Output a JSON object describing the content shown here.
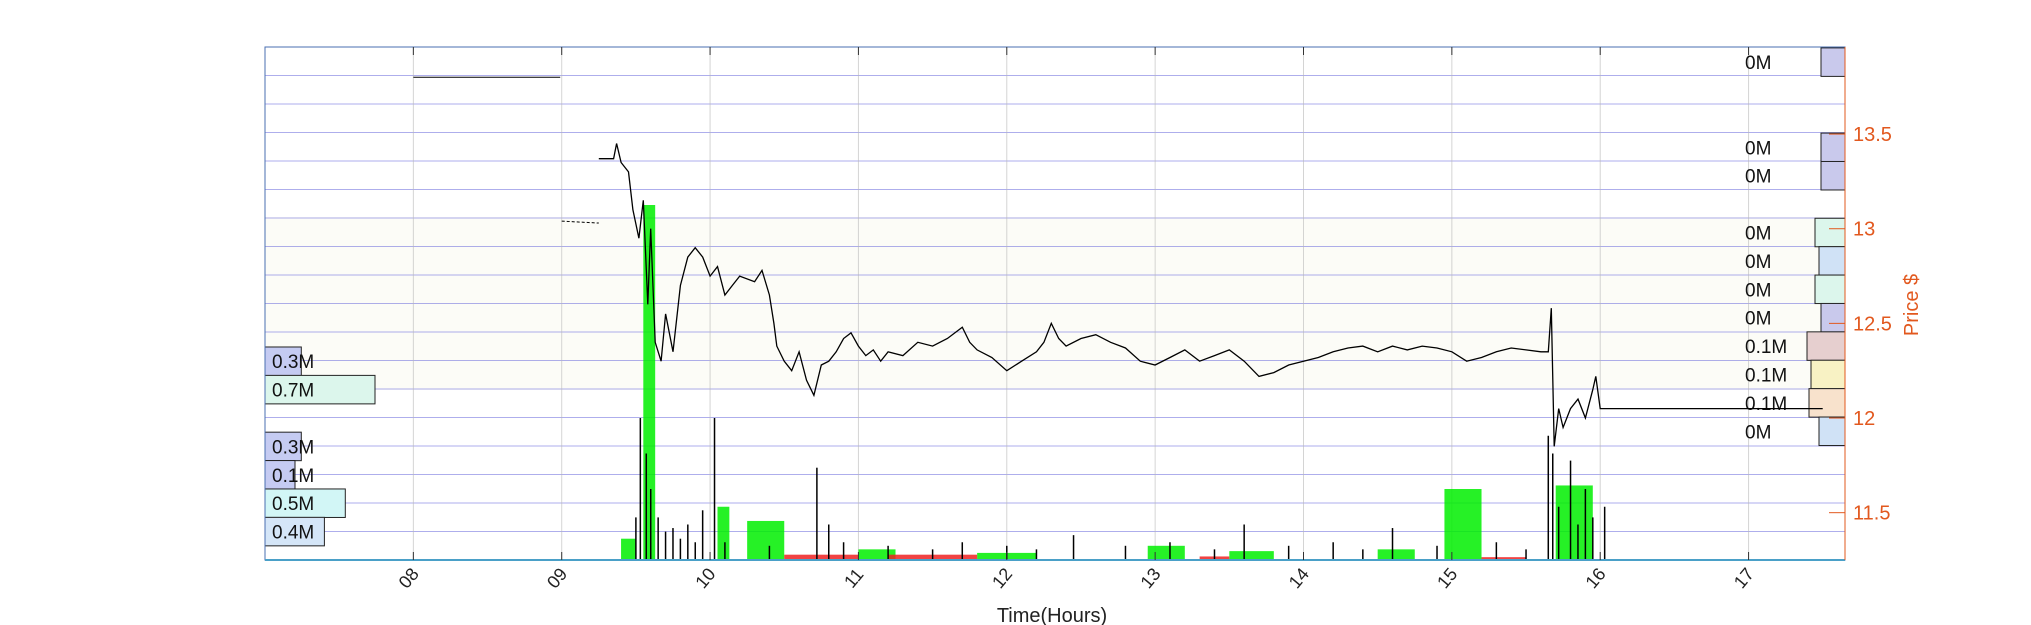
{
  "chart_data": {
    "type": "line",
    "title": "",
    "xlabel": "Time(Hours)",
    "ylabel": "Price $",
    "xlim": [
      7.0,
      17.65
    ],
    "ylim": [
      11.25,
      13.96
    ],
    "x_ticks": [
      "08",
      "09",
      "10",
      "11",
      "12",
      "13",
      "14",
      "15",
      "16",
      "17"
    ],
    "x_tick_values": [
      8,
      9,
      10,
      11,
      12,
      13,
      14,
      15,
      16,
      17
    ],
    "y_ticks": [
      "11.5",
      "12",
      "12.5",
      "13",
      "13.5"
    ],
    "y_tick_values": [
      11.5,
      12,
      12.5,
      13,
      13.5
    ],
    "grid": true,
    "colors": {
      "grid": "#6b6bdd",
      "price_line": "#000000",
      "price_axis": "#e2581e",
      "buy_volume": "#00ee00",
      "sell_volume": "#ee2222",
      "band": "#fcfcf7"
    },
    "price_series": {
      "name": "",
      "points": [
        [
          8.0,
          13.8
        ],
        [
          8.99,
          13.8
        ],
        [
          9.0,
          13.04
        ],
        [
          9.25,
          13.03
        ],
        [
          9.25,
          13.37
        ],
        [
          9.35,
          13.37
        ],
        [
          9.37,
          13.45
        ],
        [
          9.4,
          13.35
        ],
        [
          9.45,
          13.3
        ],
        [
          9.48,
          13.1
        ],
        [
          9.52,
          12.95
        ],
        [
          9.55,
          13.15
        ],
        [
          9.58,
          12.6
        ],
        [
          9.6,
          13.0
        ],
        [
          9.63,
          12.4
        ],
        [
          9.67,
          12.3
        ],
        [
          9.7,
          12.55
        ],
        [
          9.75,
          12.35
        ],
        [
          9.8,
          12.7
        ],
        [
          9.85,
          12.85
        ],
        [
          9.9,
          12.9
        ],
        [
          9.95,
          12.85
        ],
        [
          10.0,
          12.75
        ],
        [
          10.05,
          12.8
        ],
        [
          10.1,
          12.65
        ],
        [
          10.15,
          12.7
        ],
        [
          10.2,
          12.75
        ],
        [
          10.3,
          12.72
        ],
        [
          10.35,
          12.78
        ],
        [
          10.4,
          12.65
        ],
        [
          10.43,
          12.5
        ],
        [
          10.45,
          12.38
        ],
        [
          10.5,
          12.3
        ],
        [
          10.55,
          12.25
        ],
        [
          10.6,
          12.35
        ],
        [
          10.65,
          12.2
        ],
        [
          10.7,
          12.12
        ],
        [
          10.75,
          12.28
        ],
        [
          10.8,
          12.3
        ],
        [
          10.85,
          12.35
        ],
        [
          10.9,
          12.42
        ],
        [
          10.95,
          12.45
        ],
        [
          11.0,
          12.38
        ],
        [
          11.05,
          12.33
        ],
        [
          11.1,
          12.36
        ],
        [
          11.15,
          12.3
        ],
        [
          11.2,
          12.35
        ],
        [
          11.3,
          12.33
        ],
        [
          11.4,
          12.4
        ],
        [
          11.5,
          12.38
        ],
        [
          11.6,
          12.42
        ],
        [
          11.7,
          12.48
        ],
        [
          11.75,
          12.4
        ],
        [
          11.8,
          12.36
        ],
        [
          11.9,
          12.32
        ],
        [
          12.0,
          12.25
        ],
        [
          12.1,
          12.3
        ],
        [
          12.2,
          12.35
        ],
        [
          12.25,
          12.4
        ],
        [
          12.3,
          12.5
        ],
        [
          12.35,
          12.42
        ],
        [
          12.4,
          12.38
        ],
        [
          12.5,
          12.42
        ],
        [
          12.6,
          12.44
        ],
        [
          12.7,
          12.4
        ],
        [
          12.8,
          12.37
        ],
        [
          12.9,
          12.3
        ],
        [
          13.0,
          12.28
        ],
        [
          13.1,
          12.32
        ],
        [
          13.2,
          12.36
        ],
        [
          13.3,
          12.3
        ],
        [
          13.4,
          12.33
        ],
        [
          13.5,
          12.36
        ],
        [
          13.6,
          12.3
        ],
        [
          13.7,
          12.22
        ],
        [
          13.8,
          12.24
        ],
        [
          13.9,
          12.28
        ],
        [
          14.0,
          12.3
        ],
        [
          14.1,
          12.32
        ],
        [
          14.2,
          12.35
        ],
        [
          14.3,
          12.37
        ],
        [
          14.4,
          12.38
        ],
        [
          14.5,
          12.35
        ],
        [
          14.6,
          12.38
        ],
        [
          14.7,
          12.36
        ],
        [
          14.8,
          12.38
        ],
        [
          14.9,
          12.37
        ],
        [
          15.0,
          12.35
        ],
        [
          15.1,
          12.3
        ],
        [
          15.2,
          12.32
        ],
        [
          15.3,
          12.35
        ],
        [
          15.4,
          12.37
        ],
        [
          15.5,
          12.36
        ],
        [
          15.6,
          12.35
        ],
        [
          15.65,
          12.35
        ],
        [
          15.67,
          12.58
        ],
        [
          15.69,
          11.85
        ],
        [
          15.72,
          12.05
        ],
        [
          15.75,
          11.95
        ],
        [
          15.8,
          12.05
        ],
        [
          15.85,
          12.1
        ],
        [
          15.9,
          12.0
        ],
        [
          15.95,
          12.15
        ],
        [
          15.97,
          12.22
        ],
        [
          16.0,
          12.05
        ],
        [
          16.03,
          12.05
        ],
        [
          17.5,
          12.05
        ]
      ]
    },
    "volume_bars_buy": [
      {
        "x0": 9.4,
        "x1": 9.5,
        "v": 0.06
      },
      {
        "x0": 9.55,
        "x1": 9.63,
        "v": 1.0
      },
      {
        "x0": 10.05,
        "x1": 10.13,
        "v": 0.15
      },
      {
        "x0": 10.25,
        "x1": 10.5,
        "v": 0.11
      },
      {
        "x0": 11.0,
        "x1": 11.25,
        "v": 0.03
      },
      {
        "x0": 11.8,
        "x1": 12.2,
        "v": 0.02
      },
      {
        "x0": 12.95,
        "x1": 13.2,
        "v": 0.04
      },
      {
        "x0": 13.5,
        "x1": 13.8,
        "v": 0.025
      },
      {
        "x0": 14.5,
        "x1": 14.75,
        "v": 0.03
      },
      {
        "x0": 14.95,
        "x1": 15.2,
        "v": 0.2
      },
      {
        "x0": 15.7,
        "x1": 15.95,
        "v": 0.21
      }
    ],
    "volume_bars_sell": [
      {
        "x0": 10.5,
        "x1": 11.0,
        "v": 0.015
      },
      {
        "x0": 11.2,
        "x1": 11.8,
        "v": 0.015
      },
      {
        "x0": 13.3,
        "x1": 13.5,
        "v": 0.01
      },
      {
        "x0": 15.2,
        "x1": 15.5,
        "v": 0.008
      }
    ],
    "volume_spikes": [
      [
        9.5,
        0.12
      ],
      [
        9.53,
        0.4
      ],
      [
        9.57,
        0.3
      ],
      [
        9.6,
        0.2
      ],
      [
        9.65,
        0.12
      ],
      [
        9.7,
        0.08
      ],
      [
        9.75,
        0.09
      ],
      [
        9.8,
        0.06
      ],
      [
        9.85,
        0.1
      ],
      [
        9.9,
        0.05
      ],
      [
        9.95,
        0.14
      ],
      [
        10.03,
        0.4
      ],
      [
        10.1,
        0.05
      ],
      [
        10.4,
        0.04
      ],
      [
        10.72,
        0.26
      ],
      [
        10.8,
        0.1
      ],
      [
        10.9,
        0.05
      ],
      [
        11.2,
        0.04
      ],
      [
        11.5,
        0.03
      ],
      [
        11.7,
        0.05
      ],
      [
        12.0,
        0.04
      ],
      [
        12.2,
        0.03
      ],
      [
        12.45,
        0.07
      ],
      [
        12.8,
        0.04
      ],
      [
        13.1,
        0.05
      ],
      [
        13.4,
        0.03
      ],
      [
        13.6,
        0.1
      ],
      [
        13.9,
        0.04
      ],
      [
        14.2,
        0.05
      ],
      [
        14.4,
        0.03
      ],
      [
        14.6,
        0.09
      ],
      [
        14.9,
        0.04
      ],
      [
        15.3,
        0.05
      ],
      [
        15.5,
        0.03
      ],
      [
        15.65,
        0.35
      ],
      [
        15.68,
        0.3
      ],
      [
        15.72,
        0.15
      ],
      [
        15.8,
        0.28
      ],
      [
        15.85,
        0.1
      ],
      [
        15.9,
        0.2
      ],
      [
        15.95,
        0.12
      ],
      [
        16.03,
        0.15
      ]
    ],
    "left_volume_profile": [
      {
        "label": "0.3M",
        "price": 12.3,
        "frac": 0.33,
        "color": "#c5cbf2"
      },
      {
        "label": "0.7M",
        "price": 12.15,
        "frac": 1.0,
        "color": "#dcf6ec"
      },
      {
        "label": "0.3M",
        "price": 11.85,
        "frac": 0.33,
        "color": "#c5cbf2"
      },
      {
        "label": "0.1M",
        "price": 11.7,
        "frac": 0.17,
        "color": "#c5cbf2"
      },
      {
        "label": "0.5M",
        "price": 11.55,
        "frac": 0.73,
        "color": "#d2f6f6"
      },
      {
        "label": "0.4M",
        "price": 11.4,
        "frac": 0.54,
        "color": "#d5e6f8"
      }
    ],
    "right_volume_profile": [
      {
        "label": "0M",
        "price": 13.88,
        "frac": 0.6,
        "color": "#c9c9ec"
      },
      {
        "label": "0M",
        "price": 13.43,
        "frac": 0.6,
        "color": "#c9c9ec"
      },
      {
        "label": "0M",
        "price": 13.28,
        "frac": 0.6,
        "color": "#c9c9ec"
      },
      {
        "label": "0M",
        "price": 12.98,
        "frac": 0.75,
        "color": "#dcf6ec"
      },
      {
        "label": "0M",
        "price": 12.83,
        "frac": 0.65,
        "color": "#d0e2f6"
      },
      {
        "label": "0M",
        "price": 12.68,
        "frac": 0.75,
        "color": "#dcf6ec"
      },
      {
        "label": "0M",
        "price": 12.53,
        "frac": 0.6,
        "color": "#c9c9ec"
      },
      {
        "label": "0.1M",
        "price": 12.38,
        "frac": 0.95,
        "color": "#e6cfcf"
      },
      {
        "label": "0.1M",
        "price": 12.23,
        "frac": 0.85,
        "color": "#f8f2c4"
      },
      {
        "label": "0.1M",
        "price": 12.08,
        "frac": 0.9,
        "color": "#f8e2cc"
      },
      {
        "label": "0M",
        "price": 11.93,
        "frac": 0.65,
        "color": "#d0e2f6"
      }
    ]
  }
}
